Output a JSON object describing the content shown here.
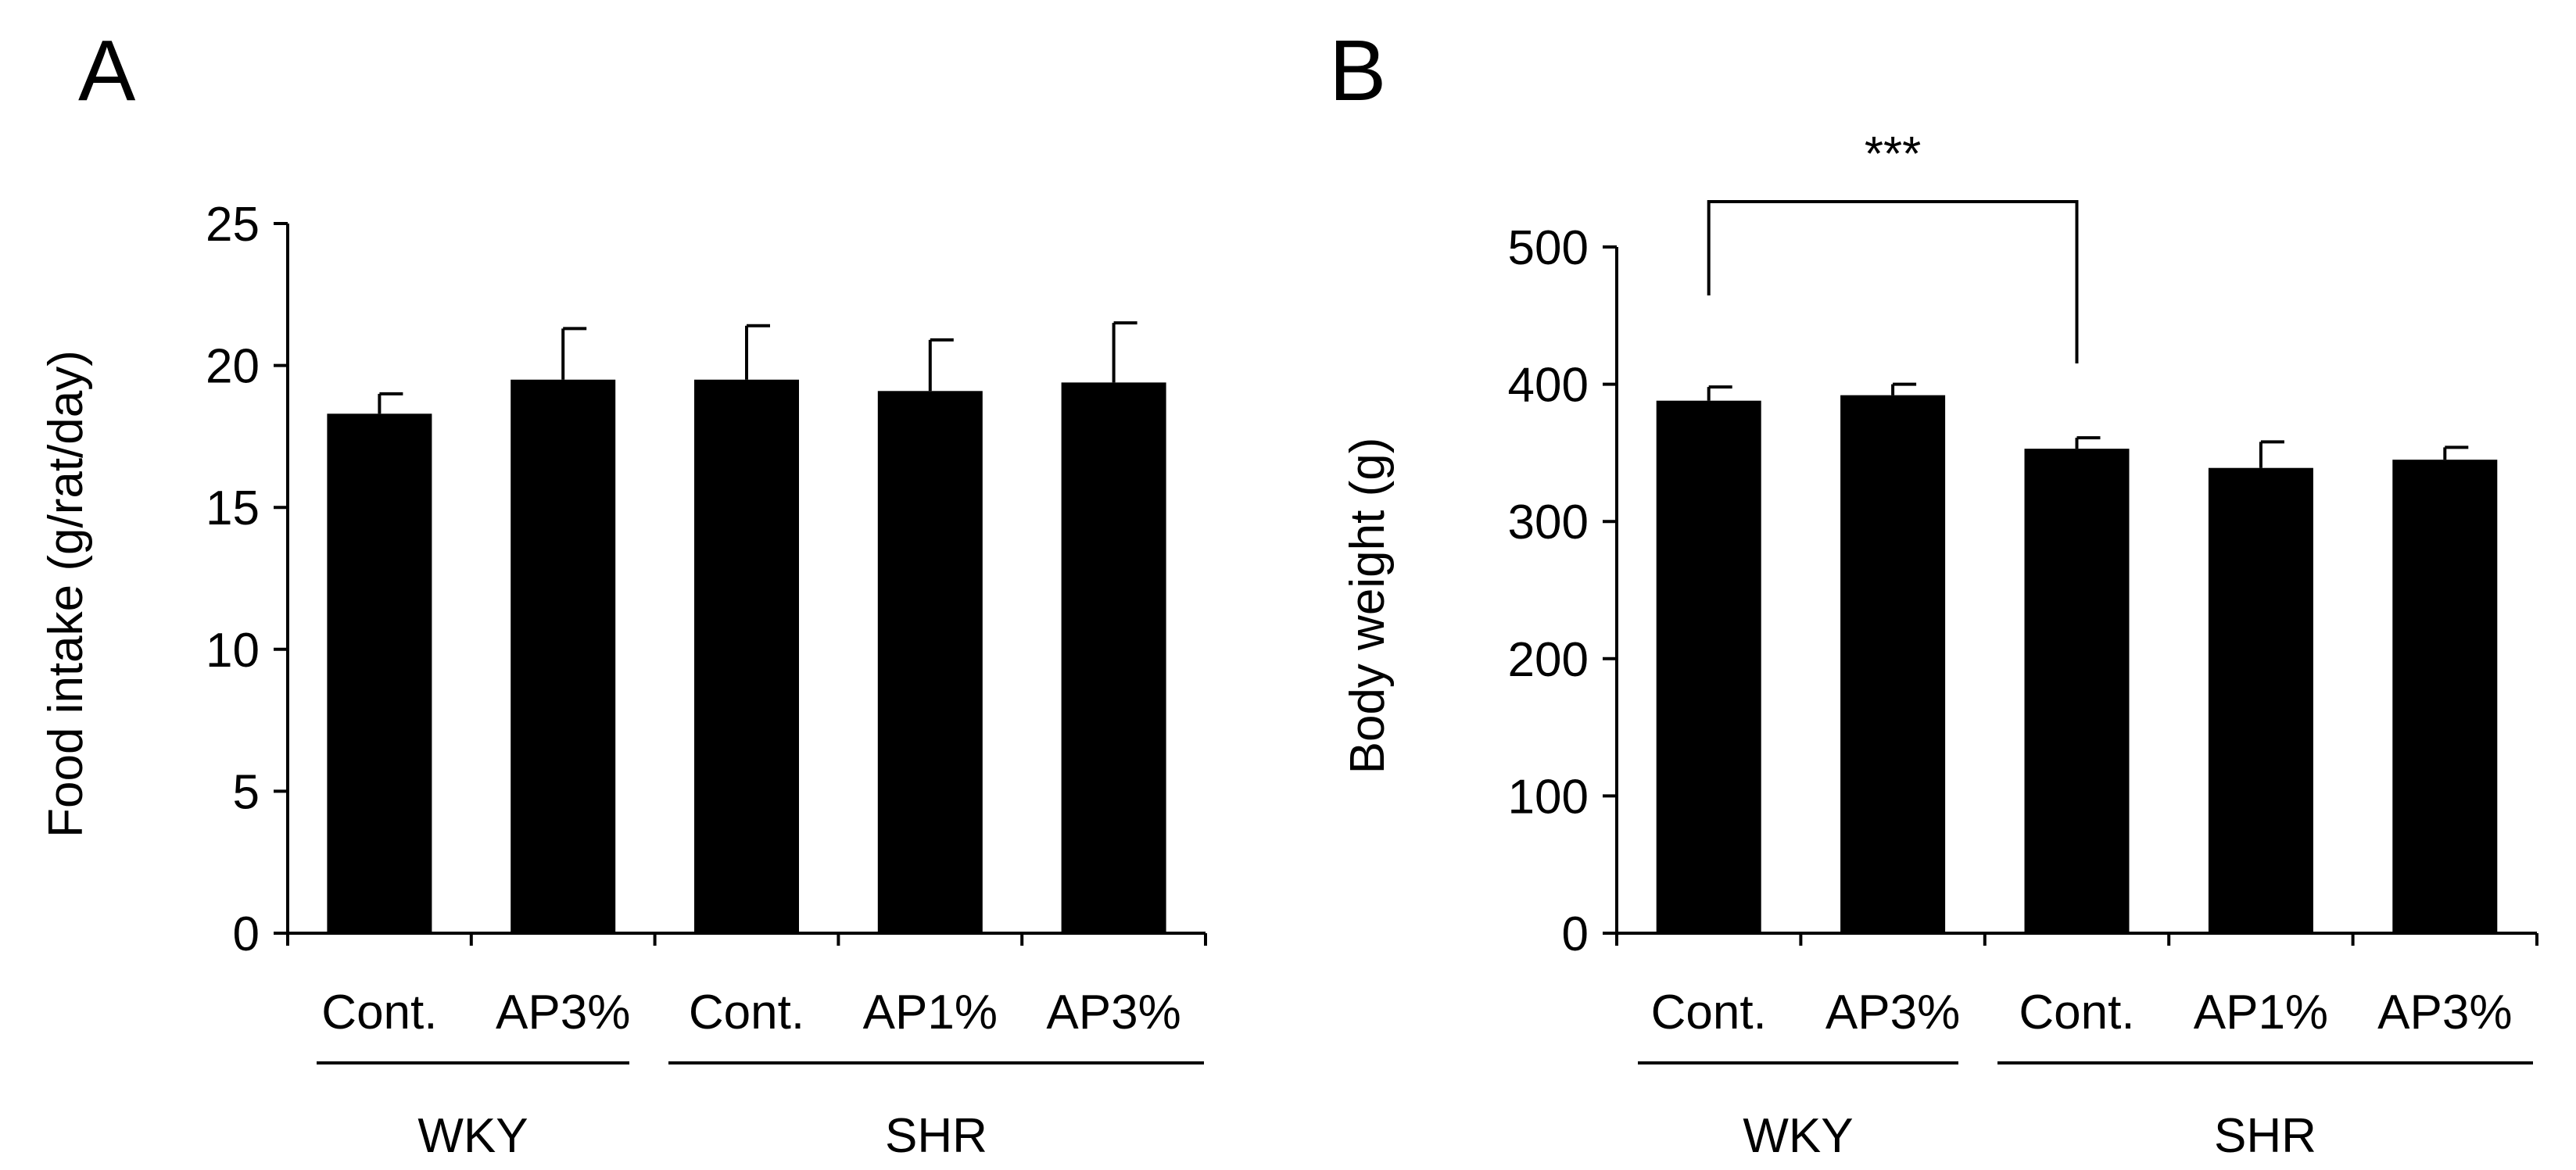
{
  "colors": {
    "bar": "#000000",
    "axis": "#000000",
    "background": "#ffffff"
  },
  "chart_data": [
    {
      "panel": "A",
      "type": "bar",
      "ylabel": "Food intake (g/rat/day)",
      "ylim": [
        0,
        25
      ],
      "yticks": [
        0,
        5,
        10,
        15,
        20,
        25
      ],
      "categories": [
        "Cont.",
        "AP3%",
        "Cont.",
        "AP1%",
        "AP3%"
      ],
      "groups": [
        {
          "label": "WKY",
          "categories": [
            "Cont.",
            "AP3%"
          ]
        },
        {
          "label": "SHR",
          "categories": [
            "Cont.",
            "AP1%",
            "AP3%"
          ]
        }
      ],
      "values": [
        18.3,
        19.5,
        19.5,
        19.1,
        19.4
      ],
      "errors": [
        0.7,
        1.8,
        1.9,
        1.8,
        2.1
      ],
      "significance": []
    },
    {
      "panel": "B",
      "type": "bar",
      "ylabel": "Body weight (g)",
      "ylim": [
        0,
        500
      ],
      "yticks": [
        0,
        100,
        200,
        300,
        400,
        500
      ],
      "categories": [
        "Cont.",
        "AP3%",
        "Cont.",
        "AP1%",
        "AP3%"
      ],
      "groups": [
        {
          "label": "WKY",
          "categories": [
            "Cont.",
            "AP3%"
          ]
        },
        {
          "label": "SHR",
          "categories": [
            "Cont.",
            "AP1%",
            "AP3%"
          ]
        }
      ],
      "values": [
        388,
        392,
        353,
        339,
        345
      ],
      "errors": [
        10,
        8,
        8,
        19,
        9
      ],
      "significance": [
        {
          "from": 0,
          "to": 2,
          "label": "***"
        }
      ]
    }
  ]
}
